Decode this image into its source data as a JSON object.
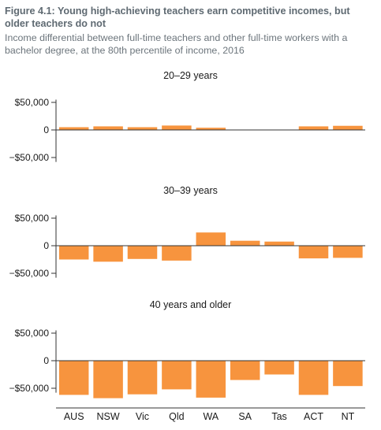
{
  "figure": {
    "title": "Figure 4.1: Young high-achieving teachers earn competitive incomes, but older teachers do not",
    "subtitle": "Income differential between full-time teachers and other full-time workers with a bachelor degree, at the 80th percentile of income, 2016"
  },
  "colors": {
    "bar": "#f7943e",
    "axis": "#333333",
    "tick_text": "#1a1a1a"
  },
  "chart_data": {
    "type": "bar",
    "categories": [
      "AUS",
      "NSW",
      "Vic",
      "Qld",
      "WA",
      "SA",
      "Tas",
      "ACT",
      "NT"
    ],
    "y_tick_labels": [
      "$50,000",
      "0",
      "−$50,000"
    ],
    "y_tick_values": [
      50000,
      0,
      -50000
    ],
    "ylim": [
      -75000,
      55000
    ],
    "grid": false,
    "panels": [
      {
        "title": "20–29 years",
        "values": [
          5000,
          6500,
          5000,
          8000,
          4000,
          0,
          0,
          6500,
          7500
        ]
      },
      {
        "title": "30–39 years",
        "values": [
          -25000,
          -29000,
          -24000,
          -27000,
          24000,
          9000,
          7500,
          -23000,
          -22000
        ]
      },
      {
        "title": "40 years and older",
        "values": [
          -62000,
          -68000,
          -61000,
          -52000,
          -67000,
          -35000,
          -25000,
          -62000,
          -46000
        ]
      }
    ]
  }
}
